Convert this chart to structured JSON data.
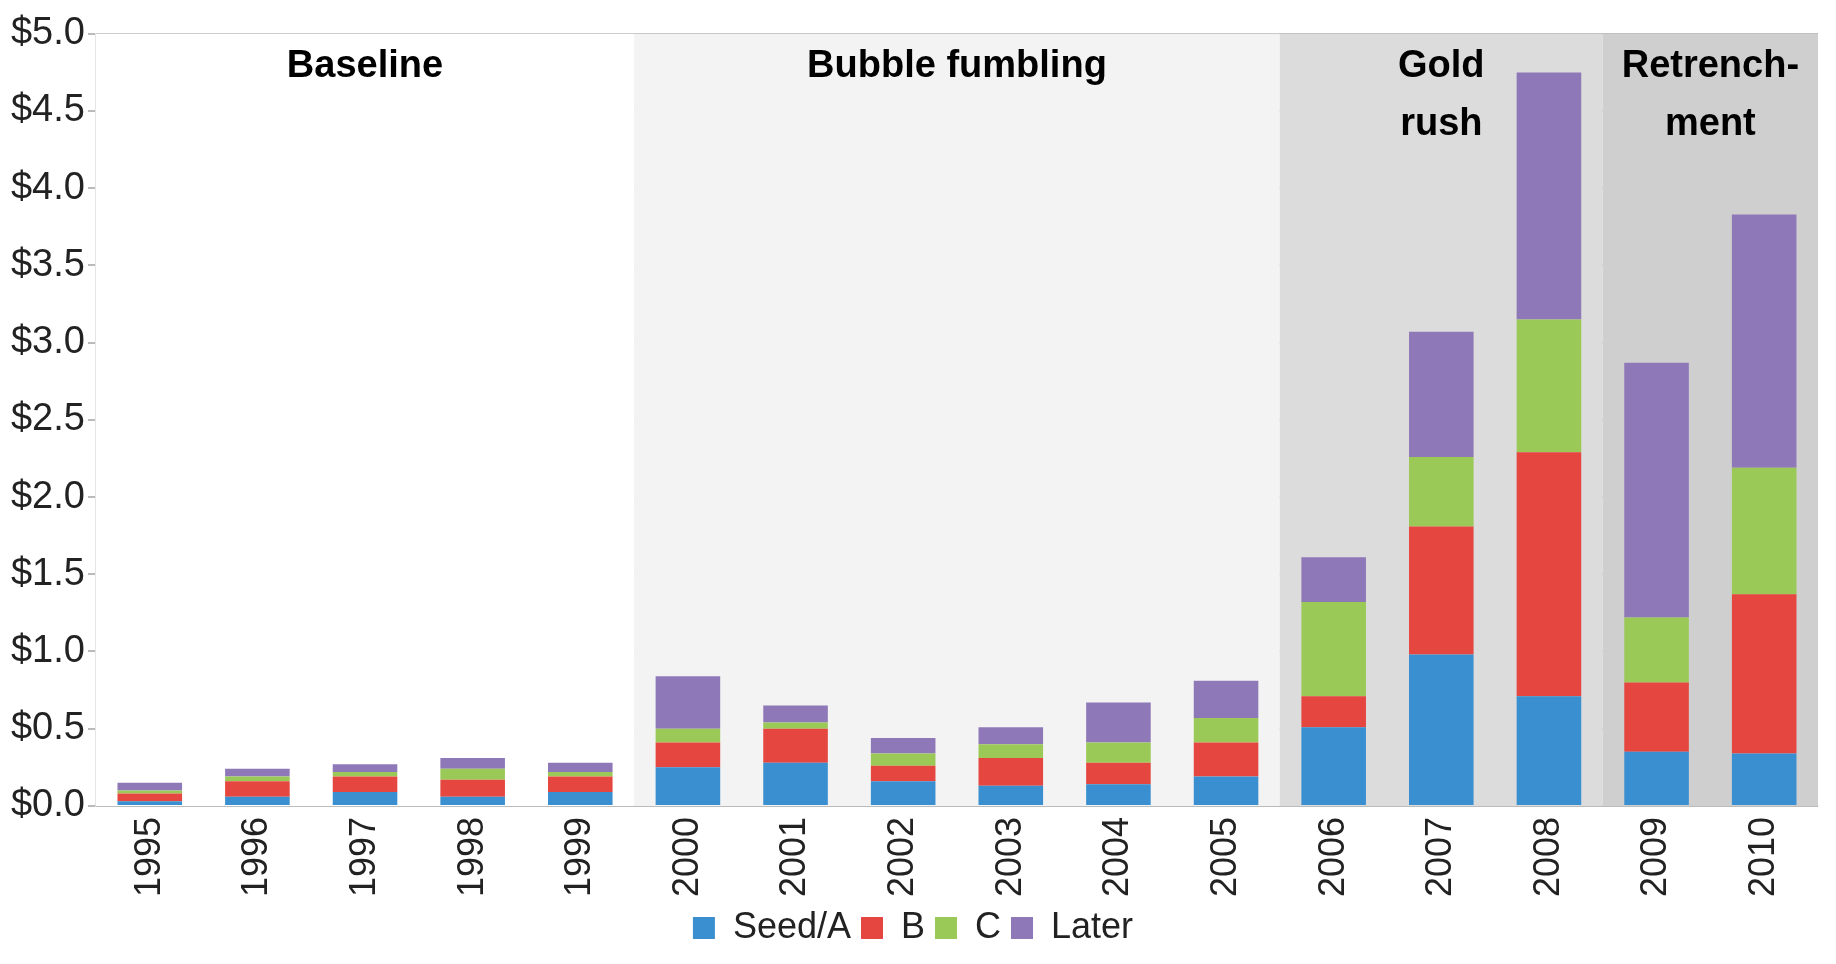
{
  "chart_data": {
    "type": "bar",
    "stacked": true,
    "categories": [
      "1995",
      "1996",
      "1997",
      "1998",
      "1999",
      "2000",
      "2001",
      "2002",
      "2003",
      "2004",
      "2005",
      "2006",
      "2007",
      "2008",
      "2009",
      "2010"
    ],
    "series": [
      {
        "name": "Seed/A",
        "color": "#3a8fd0",
        "values": [
          0.03,
          0.06,
          0.09,
          0.06,
          0.09,
          0.25,
          0.28,
          0.16,
          0.13,
          0.14,
          0.19,
          0.51,
          0.98,
          0.71,
          0.35,
          0.34
        ]
      },
      {
        "name": "B",
        "color": "#e5463f",
        "values": [
          0.05,
          0.1,
          0.1,
          0.11,
          0.1,
          0.16,
          0.22,
          0.1,
          0.18,
          0.14,
          0.22,
          0.2,
          0.83,
          1.58,
          0.45,
          1.03
        ]
      },
      {
        "name": "C",
        "color": "#9bc957",
        "values": [
          0.02,
          0.03,
          0.03,
          0.07,
          0.03,
          0.09,
          0.04,
          0.08,
          0.09,
          0.13,
          0.16,
          0.61,
          0.45,
          0.86,
          0.42,
          0.82
        ]
      },
      {
        "name": "Later",
        "color": "#8f78b8",
        "values": [
          0.05,
          0.05,
          0.05,
          0.07,
          0.06,
          0.34,
          0.11,
          0.1,
          0.11,
          0.26,
          0.24,
          0.29,
          0.81,
          1.6,
          1.65,
          1.64
        ]
      }
    ],
    "ylim": [
      0,
      5
    ],
    "yticks": [
      {
        "value": 0,
        "label": "$0.0"
      },
      {
        "value": 0.5,
        "label": "$0.5"
      },
      {
        "value": 1,
        "label": "$1.0"
      },
      {
        "value": 1.5,
        "label": "$1.5"
      },
      {
        "value": 2,
        "label": "$2.0"
      },
      {
        "value": 2.5,
        "label": "$2.5"
      },
      {
        "value": 3,
        "label": "$3.0"
      },
      {
        "value": 3.5,
        "label": "$3.5"
      },
      {
        "value": 4,
        "label": "$4.0"
      },
      {
        "value": 4.5,
        "label": "$4.5"
      },
      {
        "value": 5,
        "label": "$5.0"
      }
    ],
    "grid": "y",
    "legend": "bottom",
    "bands": [
      {
        "axis": "x",
        "from": "1995",
        "to": "1999",
        "label": "Baseline",
        "color": "#ffffff"
      },
      {
        "axis": "x",
        "from": "2000",
        "to": "2005",
        "label": "Bubble fumbling",
        "color": "#f3f3f3"
      },
      {
        "axis": "x",
        "from": "2006",
        "to": "2008",
        "label": "Gold\nrush",
        "color": "#dcdcdc"
      },
      {
        "axis": "x",
        "from": "2009",
        "to": "2010",
        "label": "Retrench-\nment",
        "color": "#cfcfcf"
      }
    ]
  }
}
